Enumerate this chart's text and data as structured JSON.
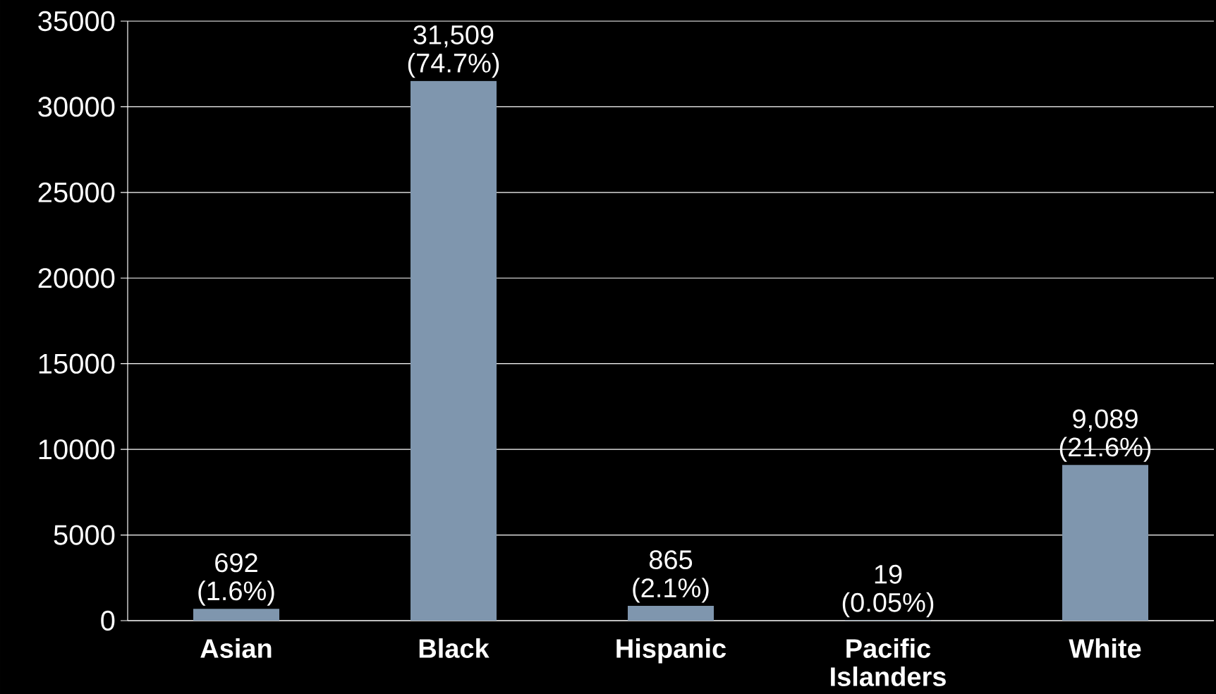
{
  "chart_data": {
    "type": "bar",
    "categories": [
      "Asian",
      "Black",
      "Hispanic",
      "Pacific Islanders",
      "White"
    ],
    "values": [
      692,
      31509,
      865,
      19,
      9089
    ],
    "value_labels": [
      "692 (1.6%)",
      "31,509 (74.7%)",
      "865 (2.1%)",
      "19 (0.05%)",
      "9,089 (21.6%)"
    ],
    "color": "#7f96ae",
    "ylim": [
      0,
      35000
    ],
    "yticks": [
      0,
      5000,
      10000,
      15000,
      20000,
      25000,
      30000,
      35000
    ],
    "grid": "y"
  }
}
